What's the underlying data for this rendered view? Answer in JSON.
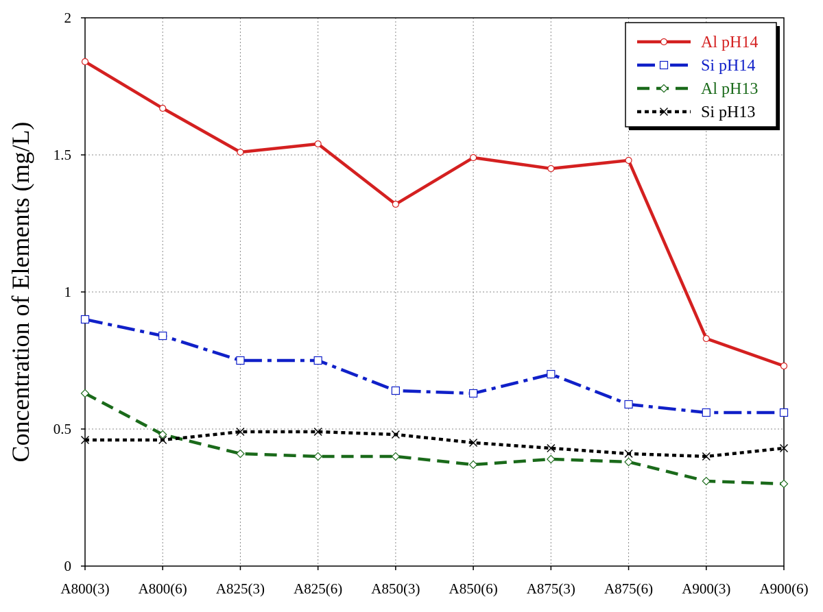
{
  "chart_data": {
    "type": "line",
    "ylabel": "Concentration of Elements (mg/L)",
    "xlabel": "",
    "categories": [
      "A800(3)",
      "A800(6)",
      "A825(3)",
      "A825(6)",
      "A850(3)",
      "A850(6)",
      "A875(3)",
      "A875(6)",
      "A900(3)",
      "A900(6)"
    ],
    "ylim": [
      0,
      2
    ],
    "yticks": [
      0,
      0.5,
      1,
      1.5,
      2
    ],
    "ytick_labels": [
      "0",
      "0.5",
      "1",
      "1.5",
      "2"
    ],
    "grid": true,
    "legend_position": "top-right",
    "series": [
      {
        "name": "Al pH14",
        "color": "#d42020",
        "line_style": "solid",
        "marker": "circle",
        "values": [
          1.84,
          1.67,
          1.51,
          1.54,
          1.32,
          1.49,
          1.45,
          1.48,
          0.83,
          0.73
        ]
      },
      {
        "name": "Si pH14",
        "color": "#1020c8",
        "line_style": "dash-dot",
        "marker": "square",
        "values": [
          0.9,
          0.84,
          0.75,
          0.75,
          0.64,
          0.63,
          0.7,
          0.59,
          0.56,
          0.56
        ]
      },
      {
        "name": "Al pH13",
        "color": "#1a6a1a",
        "line_style": "dashed",
        "marker": "diamond",
        "values": [
          0.63,
          0.48,
          0.41,
          0.4,
          0.4,
          0.37,
          0.39,
          0.38,
          0.31,
          0.3
        ]
      },
      {
        "name": "Si pH13",
        "color": "#000000",
        "line_style": "dotted",
        "marker": "x",
        "values": [
          0.46,
          0.46,
          0.49,
          0.49,
          0.48,
          0.45,
          0.43,
          0.41,
          0.4,
          0.43
        ]
      }
    ]
  }
}
